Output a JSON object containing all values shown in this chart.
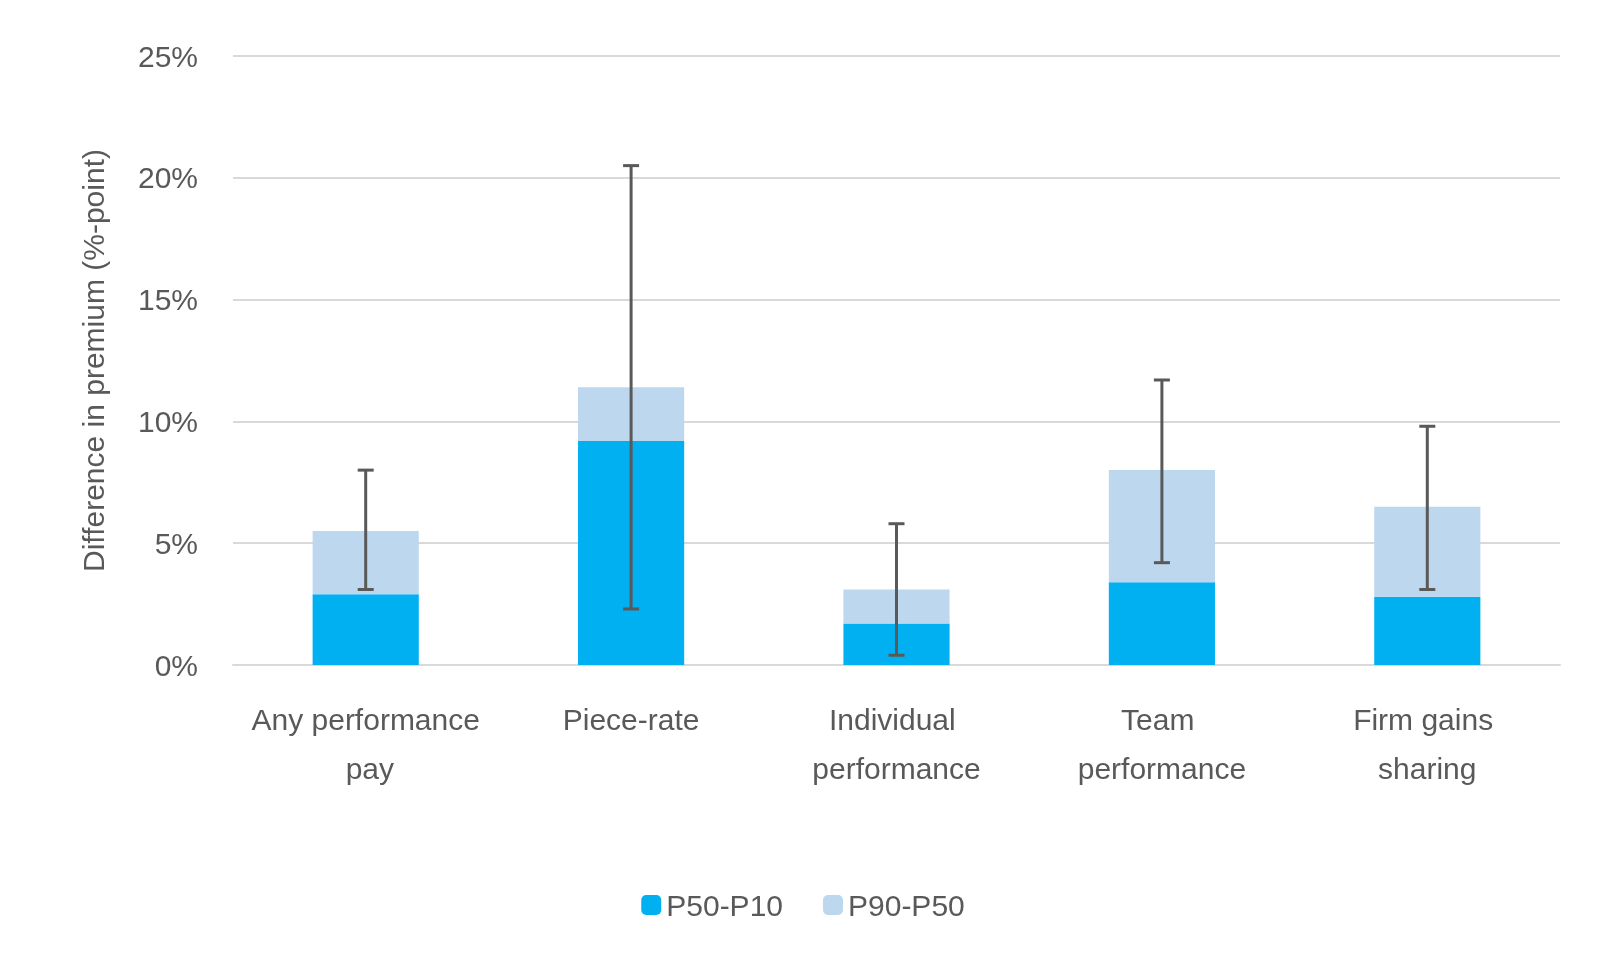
{
  "chart_data": {
    "type": "bar",
    "stacked": true,
    "ylabel": "Difference in premium (%-point)",
    "categories": [
      "Any performance pay",
      "Piece-rate",
      "Individual performance",
      "Team performance",
      "Firm gains sharing"
    ],
    "series": [
      {
        "name": "P50-P10",
        "color": "#00b0f0",
        "values": [
          2.9,
          9.2,
          1.7,
          3.4,
          2.8
        ]
      },
      {
        "name": "P90-P50",
        "color": "#bdd7ee",
        "values": [
          2.6,
          2.2,
          1.4,
          4.6,
          3.7
        ],
        "errors": [
          [
            3.1,
            8.0
          ],
          [
            2.3,
            20.5
          ],
          [
            0.4,
            5.8
          ],
          [
            4.2,
            11.7
          ],
          [
            3.1,
            9.8
          ]
        ]
      }
    ],
    "ylim": [
      0,
      25
    ],
    "yticks": [
      {
        "value": 0,
        "label": "0%"
      },
      {
        "value": 5,
        "label": "5%"
      },
      {
        "value": 10,
        "label": "10%"
      },
      {
        "value": 15,
        "label": "15%"
      },
      {
        "value": 20,
        "label": "20%"
      },
      {
        "value": 25,
        "label": "25%"
      }
    ],
    "grid": "y",
    "legend": "bottom"
  }
}
